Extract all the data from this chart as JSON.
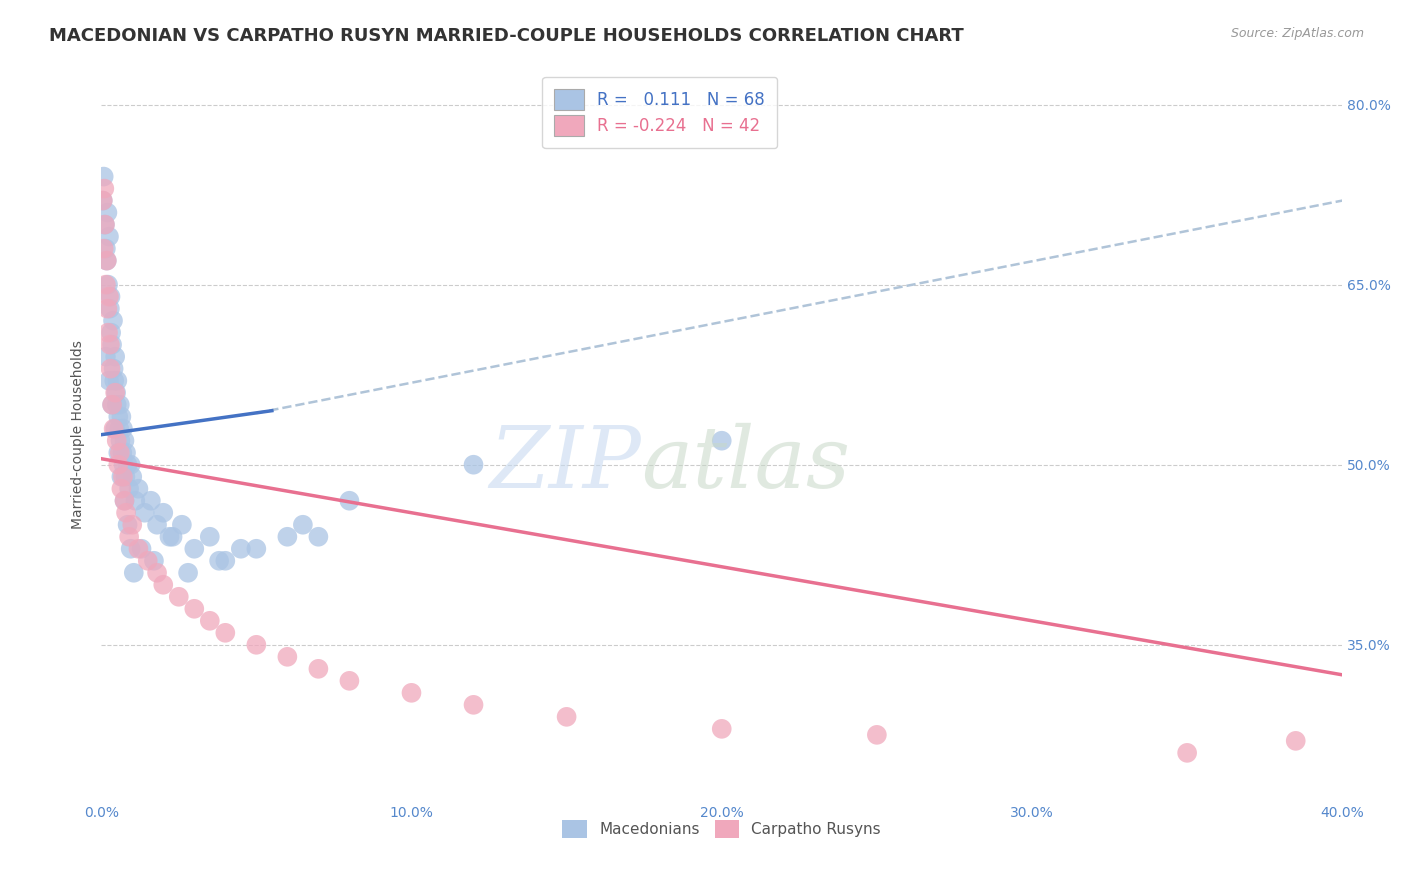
{
  "title": "MACEDONIAN VS CARPATHO RUSYN MARRIED-COUPLE HOUSEHOLDS CORRELATION CHART",
  "source": "Source: ZipAtlas.com",
  "ylabel": "Married-couple Households",
  "xlim": [
    0.0,
    40.0
  ],
  "ylim": [
    22.0,
    83.0
  ],
  "xticks": [
    0.0,
    10.0,
    20.0,
    30.0,
    40.0
  ],
  "yticks": [
    35.0,
    50.0,
    65.0,
    80.0
  ],
  "ytick_labels": [
    "35.0%",
    "50.0%",
    "65.0%",
    "80.0%"
  ],
  "xtick_labels": [
    "0.0%",
    "10.0%",
    "20.0%",
    "30.0%",
    "40.0%"
  ],
  "blue_color": "#aac4e4",
  "pink_color": "#f0a8bc",
  "blue_line_color": "#4472c4",
  "pink_line_color": "#e87090",
  "dashed_line_color": "#b0c4d8",
  "background_color": "#ffffff",
  "grid_color": "#cccccc",
  "mac_x": [
    0.05,
    0.08,
    0.12,
    0.15,
    0.18,
    0.2,
    0.22,
    0.25,
    0.28,
    0.3,
    0.32,
    0.35,
    0.38,
    0.4,
    0.42,
    0.45,
    0.48,
    0.5,
    0.52,
    0.55,
    0.58,
    0.6,
    0.62,
    0.65,
    0.68,
    0.7,
    0.72,
    0.75,
    0.78,
    0.8,
    0.85,
    0.9,
    0.95,
    1.0,
    1.1,
    1.2,
    1.4,
    1.6,
    1.8,
    2.0,
    2.3,
    2.6,
    3.0,
    3.5,
    4.0,
    5.0,
    6.0,
    7.0,
    0.15,
    0.25,
    0.35,
    0.45,
    0.55,
    0.65,
    0.75,
    0.85,
    0.95,
    1.05,
    1.3,
    1.7,
    2.2,
    2.8,
    3.8,
    4.5,
    6.5,
    8.0,
    12.0,
    20.0
  ],
  "mac_y": [
    72.0,
    74.0,
    70.0,
    68.0,
    67.0,
    71.0,
    65.0,
    69.0,
    63.0,
    64.0,
    61.0,
    60.0,
    62.0,
    58.0,
    57.0,
    59.0,
    56.0,
    55.0,
    57.0,
    54.0,
    53.0,
    55.0,
    52.0,
    54.0,
    51.0,
    53.0,
    50.0,
    52.0,
    49.0,
    51.0,
    50.0,
    48.0,
    50.0,
    49.0,
    47.0,
    48.0,
    46.0,
    47.0,
    45.0,
    46.0,
    44.0,
    45.0,
    43.0,
    44.0,
    42.0,
    43.0,
    44.0,
    44.0,
    59.0,
    57.0,
    55.0,
    53.0,
    51.0,
    49.0,
    47.0,
    45.0,
    43.0,
    41.0,
    43.0,
    42.0,
    44.0,
    41.0,
    42.0,
    43.0,
    45.0,
    47.0,
    50.0,
    52.0
  ],
  "rus_x": [
    0.05,
    0.08,
    0.1,
    0.12,
    0.15,
    0.18,
    0.2,
    0.22,
    0.25,
    0.28,
    0.3,
    0.35,
    0.4,
    0.45,
    0.5,
    0.55,
    0.6,
    0.65,
    0.7,
    0.75,
    0.8,
    0.9,
    1.0,
    1.2,
    1.5,
    1.8,
    2.0,
    2.5,
    3.0,
    3.5,
    4.0,
    5.0,
    6.0,
    7.0,
    8.0,
    10.0,
    12.0,
    15.0,
    20.0,
    25.0,
    35.0,
    38.5
  ],
  "rus_y": [
    72.0,
    68.0,
    73.0,
    70.0,
    65.0,
    67.0,
    63.0,
    61.0,
    64.0,
    60.0,
    58.0,
    55.0,
    53.0,
    56.0,
    52.0,
    50.0,
    51.0,
    48.0,
    49.0,
    47.0,
    46.0,
    44.0,
    45.0,
    43.0,
    42.0,
    41.0,
    40.0,
    39.0,
    38.0,
    37.0,
    36.0,
    35.0,
    34.0,
    33.0,
    32.0,
    31.0,
    30.0,
    29.0,
    28.0,
    27.5,
    26.0,
    27.0
  ],
  "blue_line_x0": 0.0,
  "blue_line_y0": 52.5,
  "blue_line_x1": 5.5,
  "blue_line_y1": 54.5,
  "dash_line_x0": 5.0,
  "dash_line_y0": 54.3,
  "dash_line_x1": 40.0,
  "dash_line_y1": 72.0,
  "pink_line_x0": 0.0,
  "pink_line_y0": 50.5,
  "pink_line_x1": 40.0,
  "pink_line_y1": 32.5,
  "title_fontsize": 13,
  "axis_label_fontsize": 10,
  "tick_fontsize": 10,
  "legend_fontsize": 12,
  "watermark_zip_color": "#c8daf0",
  "watermark_atlas_color": "#c8d8c8"
}
